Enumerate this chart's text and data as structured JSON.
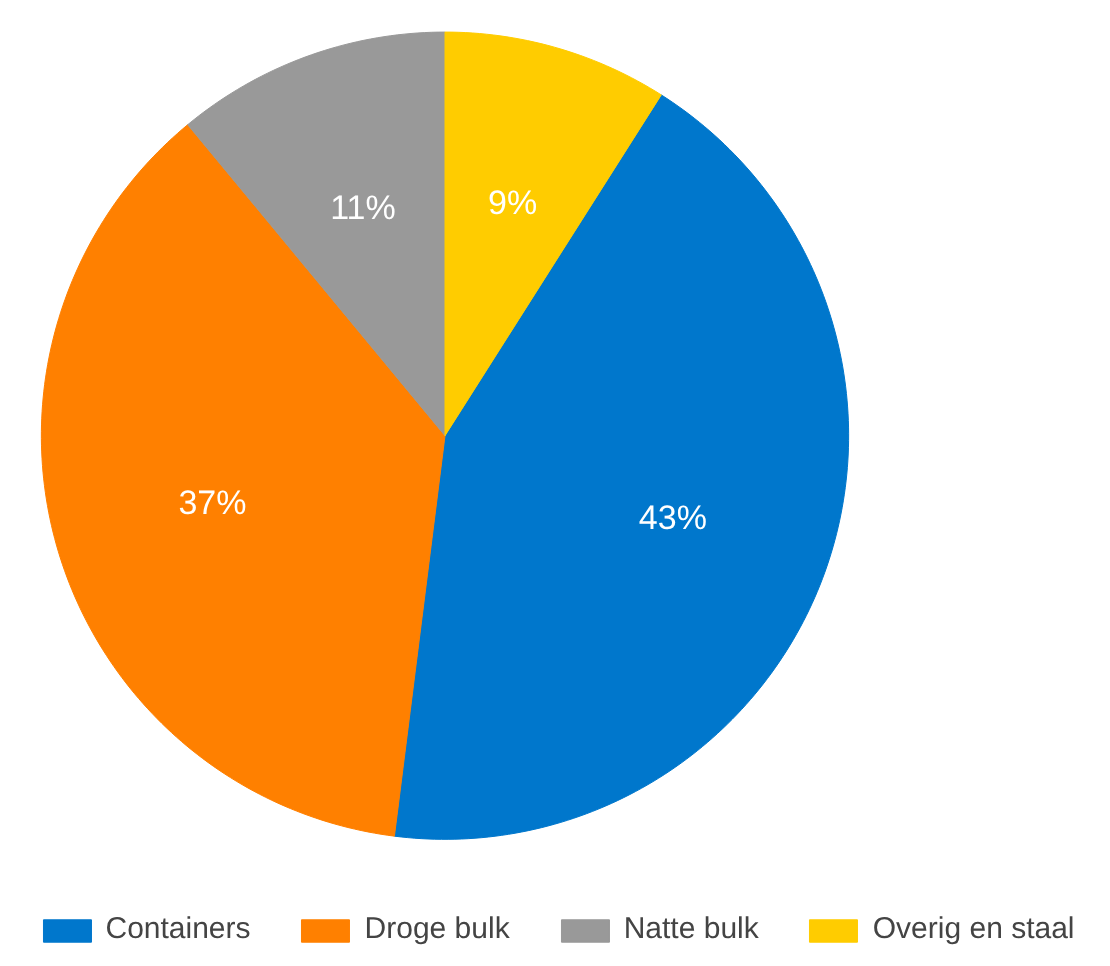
{
  "chart_data": {
    "type": "pie",
    "categories": [
      "Containers",
      "Droge bulk",
      "Natte bulk",
      "Overig en staal"
    ],
    "values": [
      43,
      37,
      11,
      9
    ],
    "colors": [
      "#0077cc",
      "#ff8000",
      "#999999",
      "#ffcc00"
    ],
    "value_labels": [
      "43%",
      "37%",
      "11%",
      "9%"
    ],
    "legend": "bottom"
  }
}
